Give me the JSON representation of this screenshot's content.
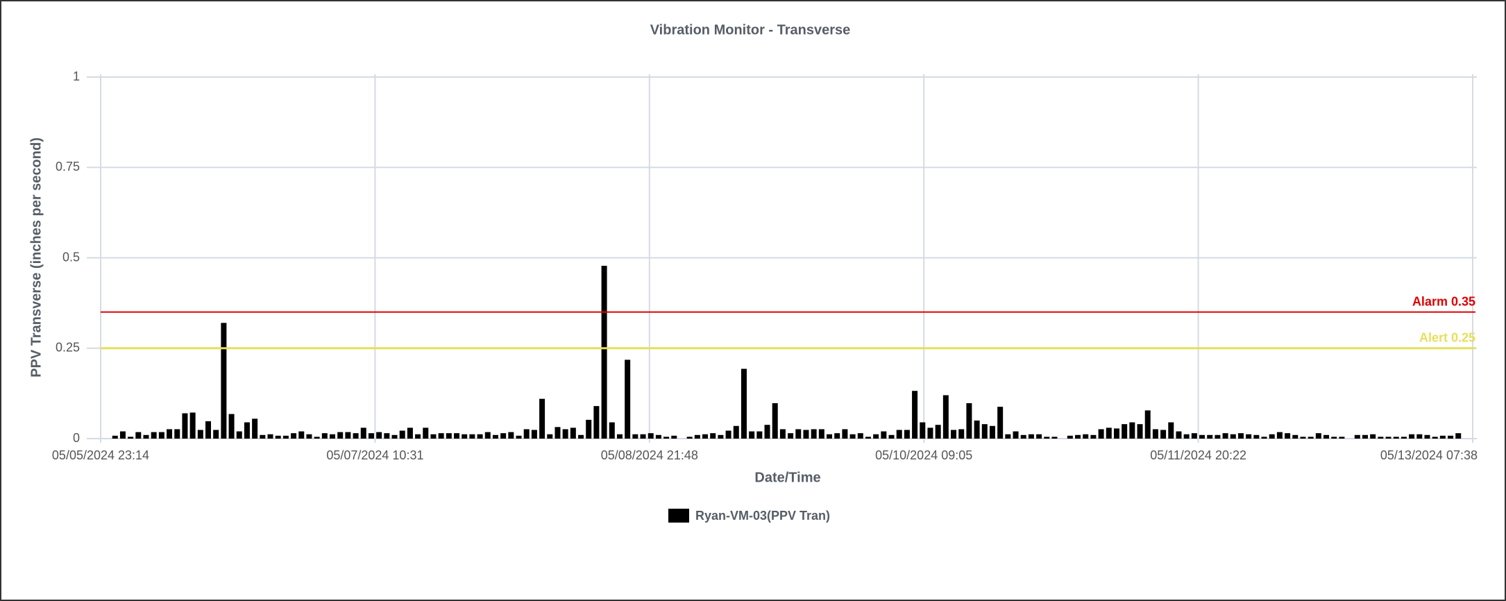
{
  "chart_data": {
    "type": "bar",
    "title": "Vibration Monitor - Transverse",
    "x_label": "Date/Time",
    "y_label": "PPV Transverse (inches per second)",
    "xticks": [
      "05/05/2024 23:14",
      "05/07/2024 10:31",
      "05/08/2024 21:48",
      "05/10/2024 09:05",
      "05/11/2024 20:22",
      "05/13/2024 07:38"
    ],
    "ylim": [
      0,
      1
    ],
    "yticks": [
      0,
      0.25,
      0.5,
      0.75,
      1
    ],
    "grid": true,
    "legend": "bottom",
    "series": [
      {
        "name": "Ryan-VM-03(PPV Tran)",
        "color": "#000000",
        "values": [
          0.008,
          0.02,
          0.005,
          0.018,
          0.01,
          0.018,
          0.018,
          0.026,
          0.026,
          0.07,
          0.072,
          0.024,
          0.048,
          0.024,
          0.32,
          0.068,
          0.02,
          0.045,
          0.055,
          0.01,
          0.012,
          0.008,
          0.008,
          0.015,
          0.02,
          0.012,
          0.005,
          0.015,
          0.012,
          0.018,
          0.018,
          0.015,
          0.03,
          0.015,
          0.018,
          0.015,
          0.01,
          0.022,
          0.03,
          0.012,
          0.03,
          0.012,
          0.015,
          0.015,
          0.015,
          0.012,
          0.012,
          0.012,
          0.018,
          0.01,
          0.015,
          0.018,
          0.008,
          0.026,
          0.024,
          0.11,
          0.012,
          0.032,
          0.026,
          0.03,
          0.01,
          0.052,
          0.09,
          0.478,
          0.045,
          0.012,
          0.218,
          0.012,
          0.012,
          0.015,
          0.01,
          0.005,
          0.008,
          null,
          0.005,
          0.01,
          0.012,
          0.015,
          0.01,
          0.022,
          0.035,
          0.193,
          0.02,
          0.02,
          0.038,
          0.098,
          0.026,
          0.015,
          0.026,
          0.024,
          0.026,
          0.026,
          0.012,
          0.015,
          0.026,
          0.012,
          0.015,
          0.005,
          0.012,
          0.02,
          0.01,
          0.024,
          0.024,
          0.132,
          0.045,
          0.03,
          0.038,
          0.12,
          0.024,
          0.026,
          0.098,
          0.05,
          0.04,
          0.035,
          0.088,
          0.012,
          0.02,
          0.01,
          0.012,
          0.012,
          0.005,
          0.005,
          null,
          0.008,
          0.01,
          0.012,
          0.01,
          0.026,
          0.03,
          0.028,
          0.04,
          0.045,
          0.04,
          0.078,
          0.026,
          0.024,
          0.045,
          0.02,
          0.012,
          0.015,
          0.01,
          0.01,
          0.01,
          0.015,
          0.012,
          0.015,
          0.012,
          0.01,
          0.005,
          0.012,
          0.018,
          0.015,
          0.01,
          0.005,
          0.005,
          0.015,
          0.01,
          0.005,
          0.005,
          null,
          0.01,
          0.01,
          0.012,
          0.005,
          0.005,
          0.005,
          0.005,
          0.012,
          0.012,
          0.01,
          0.005,
          0.008,
          0.008,
          0.015
        ]
      }
    ],
    "thresholds": [
      {
        "label": "Alarm 0.35",
        "value": 0.35,
        "color": "#e00000"
      },
      {
        "label": "Alert 0.25",
        "value": 0.25,
        "color": "#e6e05a"
      }
    ]
  }
}
